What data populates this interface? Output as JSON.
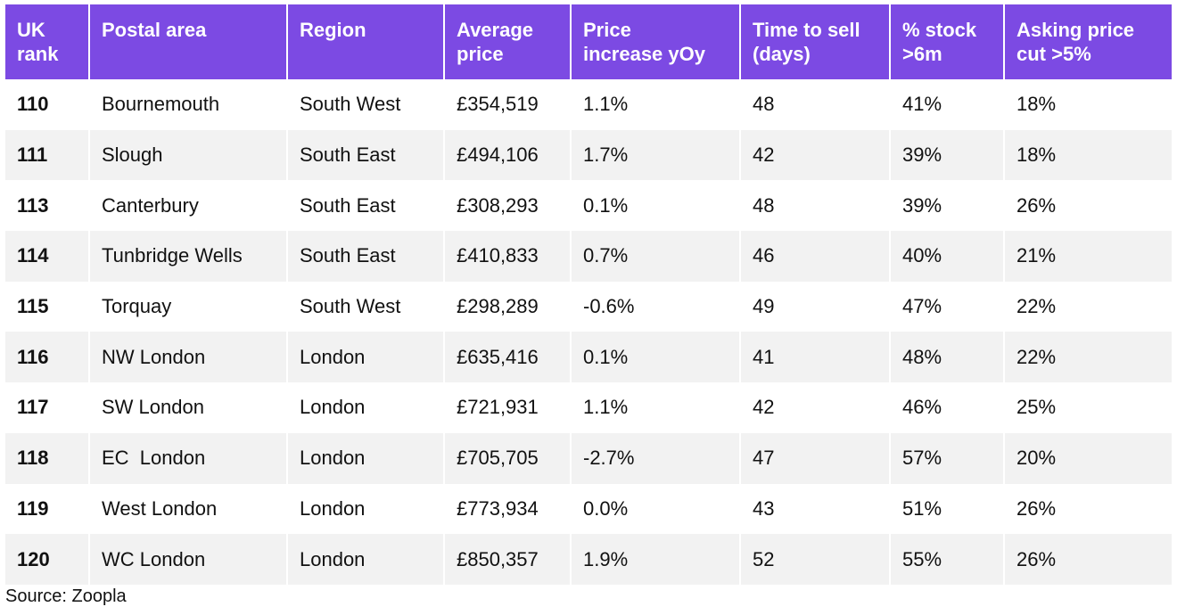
{
  "chart_data": {
    "type": "table",
    "columns": [
      "UK rank",
      "Postal area",
      "Region",
      "Average price",
      "Price increase yOy",
      "Time to sell (days)",
      "% stock >6m",
      "Asking price cut >5%"
    ],
    "rows": [
      [
        "110",
        "Bournemouth",
        "South West",
        "£354,519",
        "1.1%",
        "48",
        "41%",
        "18%"
      ],
      [
        "111",
        "Slough",
        "South East",
        "£494,106",
        "1.7%",
        "42",
        "39%",
        "18%"
      ],
      [
        "113",
        "Canterbury",
        "South East",
        "£308,293",
        "0.1%",
        "48",
        "39%",
        "26%"
      ],
      [
        "114",
        "Tunbridge Wells",
        "South East",
        "£410,833",
        "0.7%",
        "46",
        "40%",
        "21%"
      ],
      [
        "115",
        "Torquay",
        "South West",
        "£298,289",
        "-0.6%",
        "49",
        "47%",
        "22%"
      ],
      [
        "116",
        "NW London",
        "London",
        "£635,416",
        "0.1%",
        "41",
        "48%",
        "22%"
      ],
      [
        "117",
        "SW London",
        "London",
        "£721,931",
        "1.1%",
        "42",
        "46%",
        "25%"
      ],
      [
        "118",
        "EC  London",
        "London",
        "£705,705",
        "-2.7%",
        "47",
        "57%",
        "20%"
      ],
      [
        "119",
        "West London",
        "London",
        "£773,934",
        "0.0%",
        "43",
        "51%",
        "26%"
      ],
      [
        "120",
        "WC London",
        "London",
        "£850,357",
        "1.9%",
        "52",
        "55%",
        "26%"
      ]
    ],
    "source": "Source: Zoopla"
  },
  "colors": {
    "header_bg": "#7c4ae3",
    "header_text": "#ffffff",
    "stripe": "#f2f2f2"
  }
}
